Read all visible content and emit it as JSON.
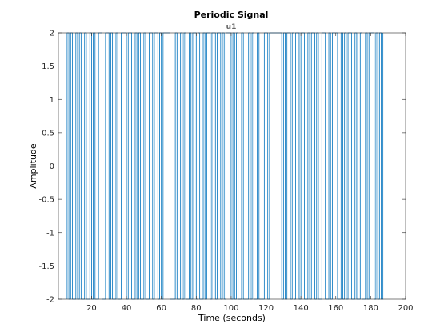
{
  "chart_data": {
    "type": "line",
    "title": "Periodic Signal",
    "subtitle": "u1",
    "xlabel": "Time (seconds)",
    "ylabel": "Amplitude",
    "xlim": [
      1,
      200
    ],
    "ylim": [
      -2,
      2
    ],
    "xticks": [
      20,
      40,
      60,
      80,
      100,
      120,
      140,
      160,
      180,
      200
    ],
    "xtick_labels": [
      "20",
      "40",
      "60",
      "80",
      "100",
      "120",
      "140",
      "160",
      "180",
      "200"
    ],
    "yticks": [
      2,
      1.5,
      1,
      0.5,
      0,
      -0.5,
      -1,
      -1.5,
      -2
    ],
    "ytick_labels": [
      "2",
      "1.5",
      "1",
      "0.5",
      "0",
      "-0.5",
      "-1",
      "-1.5",
      "-2"
    ],
    "grid": false,
    "series": [
      {
        "color": "#0072bd",
        "style": "square-wave",
        "levels": [
          -2,
          2
        ],
        "t_start": 6,
        "t_end": 187,
        "transitions": [
          6,
          7,
          8,
          9,
          11,
          12,
          13,
          14,
          16,
          17,
          19,
          20,
          21,
          22,
          24,
          26,
          28,
          30,
          31,
          32,
          34,
          35,
          37,
          40,
          41,
          43,
          45,
          46,
          47,
          48,
          50,
          51,
          53,
          55,
          56,
          58,
          59,
          60,
          61,
          65,
          68,
          69,
          71,
          72,
          73,
          74,
          76,
          77,
          78,
          80,
          81,
          82,
          84,
          85,
          86,
          88,
          89,
          91,
          92,
          94,
          95,
          96,
          97,
          100,
          101,
          102,
          103,
          104,
          106,
          107,
          110,
          111,
          112,
          113,
          115,
          116,
          119,
          121,
          122,
          129,
          130,
          131,
          132,
          134,
          135,
          136,
          137,
          139,
          140,
          142,
          144,
          145,
          146,
          148,
          149,
          150,
          152,
          154,
          156,
          157,
          158,
          161,
          163,
          164,
          165,
          166,
          167,
          169,
          171,
          172,
          174,
          175,
          177,
          178,
          179,
          182,
          183,
          184,
          185,
          186,
          187
        ]
      }
    ]
  }
}
